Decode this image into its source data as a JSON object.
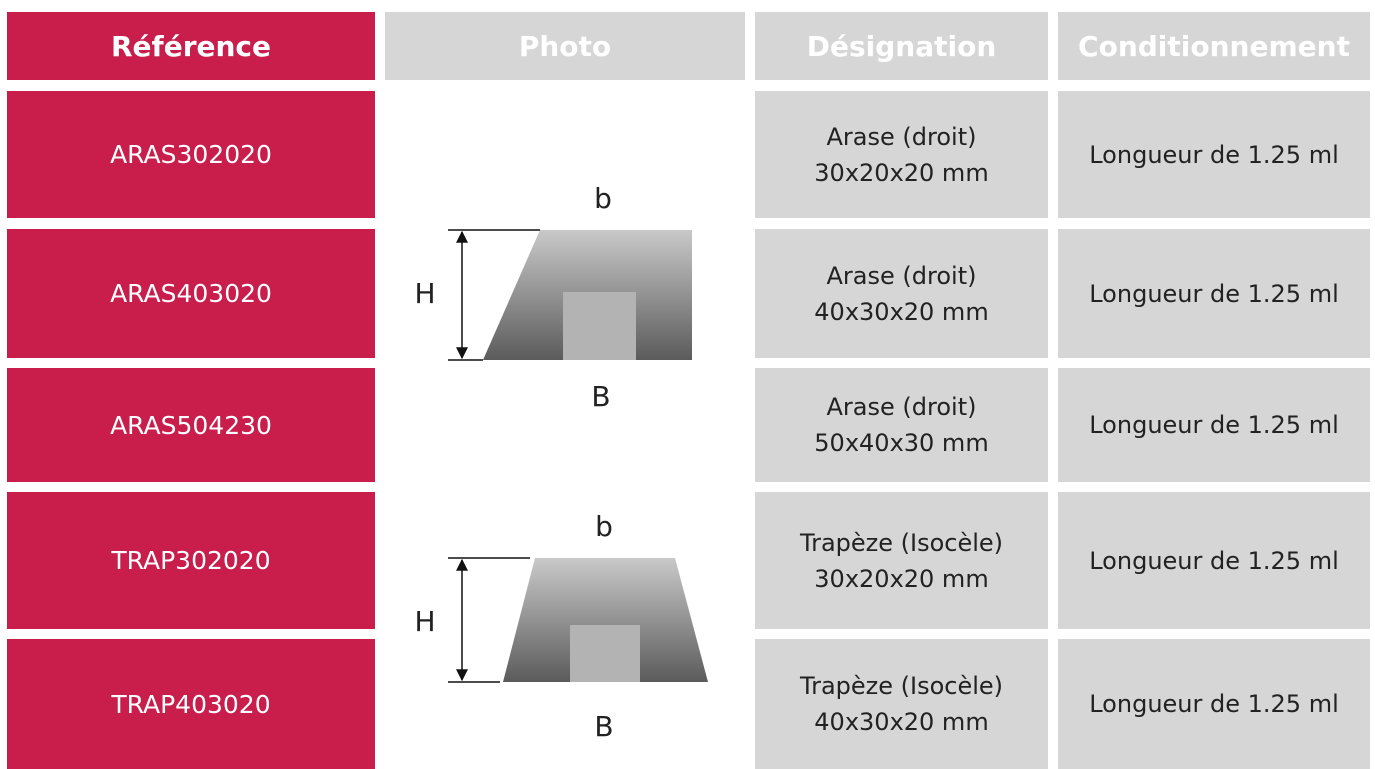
{
  "table": {
    "header": [
      "Référence",
      "Photo",
      "Désignation",
      "Conditionnement"
    ],
    "rows": [
      [
        "ARAS302020",
        [
          "Arase (droit)",
          "30x20x20 mm"
        ],
        "Longueur de 1.25 ml"
      ],
      [
        "ARAS403020",
        [
          "Arase (droit)",
          "40x30x20 mm"
        ],
        "Longueur de 1.25 ml"
      ],
      [
        "ARAS504230",
        [
          "Arase (droit)",
          "50x40x30 mm"
        ],
        "Longueur de 1.25 ml"
      ],
      [
        "TRAP302020",
        [
          "Trapèze (Isocèle)",
          "30x20x20 mm"
        ],
        "Longueur de 1.25 ml"
      ],
      [
        "TRAP403020",
        [
          "Trapèze (Isocèle)",
          "40x30x20 mm"
        ],
        "Longueur de 1.25 ml"
      ]
    ]
  },
  "diagrams": [
    {
      "top": "b",
      "height": "H",
      "bottom": "B"
    },
    {
      "top": "b",
      "height": "H",
      "bottom": "B"
    }
  ]
}
